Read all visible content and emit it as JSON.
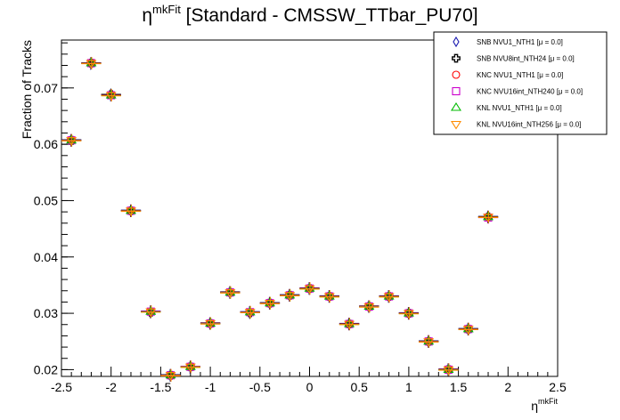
{
  "chart_data": {
    "type": "scatter",
    "title": {
      "main": "η",
      "sup": "mkFit",
      "rest": " [Standard - CMSSW_TTbar_PU70]"
    },
    "xlabel": {
      "main": "η",
      "sup": "mkFit"
    },
    "ylabel": "Fraction of Tracks",
    "xlim": [
      -2.5,
      2.5
    ],
    "ylim": [
      0.0188,
      0.0785
    ],
    "grid": false,
    "legend_position": "top-right",
    "x_ticks": [
      "-2.5",
      "-2",
      "-1.5",
      "-1",
      "-0.5",
      "0",
      "0.5",
      "1",
      "1.5",
      "2",
      "2.5"
    ],
    "y_ticks": [
      "0.02",
      "0.03",
      "0.04",
      "0.05",
      "0.06",
      "0.07"
    ],
    "x": [
      -2.4,
      -2.2,
      -2.0,
      -1.8,
      -1.6,
      -1.4,
      -1.2,
      -1.0,
      -0.8,
      -0.6,
      -0.4,
      -0.2,
      0.0,
      0.2,
      0.4,
      0.6,
      0.8,
      1.0,
      1.2,
      1.4,
      1.6,
      1.8
    ],
    "series": [
      {
        "name": "SNB NVU1_NTH1 [μ = 0.0]",
        "marker": "diamond-open",
        "color": "#1b1bb0",
        "values": [
          0.0607,
          0.0743,
          0.0687,
          0.0482,
          0.0303,
          0.019,
          0.0204,
          0.0282,
          0.0337,
          0.0302,
          0.0318,
          0.0332,
          0.0344,
          0.033,
          0.0281,
          0.0312,
          0.033,
          0.03,
          0.025,
          0.02,
          0.0272,
          0.0471
        ]
      },
      {
        "name": "SNB NVU8int_NTH24 [μ = 0.0]",
        "marker": "cross-open",
        "color": "#000000",
        "values": [
          0.0607,
          0.0744,
          0.0688,
          0.0482,
          0.0302,
          0.019,
          0.0205,
          0.0282,
          0.0337,
          0.0301,
          0.0318,
          0.0332,
          0.0344,
          0.033,
          0.0281,
          0.0312,
          0.033,
          0.03,
          0.025,
          0.02,
          0.0272,
          0.0471
        ]
      },
      {
        "name": "KNC NVU1_NTH1 [μ = 0.0]",
        "marker": "circle-open",
        "color": "#ff0000",
        "values": [
          0.0607,
          0.0744,
          0.0687,
          0.0482,
          0.0303,
          0.019,
          0.0205,
          0.0282,
          0.0337,
          0.0302,
          0.0318,
          0.0332,
          0.0344,
          0.033,
          0.0281,
          0.0312,
          0.033,
          0.03,
          0.025,
          0.02,
          0.0272,
          0.0471
        ]
      },
      {
        "name": "KNC NVU16int_NTH240 [μ = 0.0]",
        "marker": "square-open",
        "color": "#cc00cc",
        "values": [
          0.0607,
          0.0744,
          0.0687,
          0.0482,
          0.0303,
          0.019,
          0.0205,
          0.0282,
          0.0337,
          0.0302,
          0.0318,
          0.0332,
          0.0344,
          0.033,
          0.0281,
          0.0312,
          0.033,
          0.03,
          0.025,
          0.02,
          0.0272,
          0.047
        ]
      },
      {
        "name": "KNL NVU1_NTH1 [μ = 0.0]",
        "marker": "triangle-up-open",
        "color": "#00bb00",
        "values": [
          0.0607,
          0.0744,
          0.0687,
          0.0482,
          0.0303,
          0.019,
          0.0205,
          0.0282,
          0.0337,
          0.0302,
          0.0318,
          0.0332,
          0.0344,
          0.033,
          0.0281,
          0.0312,
          0.033,
          0.03,
          0.025,
          0.02,
          0.0272,
          0.0471
        ]
      },
      {
        "name": "KNL NVU16int_NTH256 [μ = 0.0]",
        "marker": "triangle-down-open",
        "color": "#ff8c00",
        "values": [
          0.0607,
          0.0744,
          0.0687,
          0.0482,
          0.0303,
          0.019,
          0.0205,
          0.0282,
          0.0337,
          0.0302,
          0.0318,
          0.0332,
          0.0344,
          0.033,
          0.0281,
          0.0312,
          0.033,
          0.03,
          0.025,
          0.02,
          0.0272,
          0.0471
        ]
      }
    ]
  }
}
